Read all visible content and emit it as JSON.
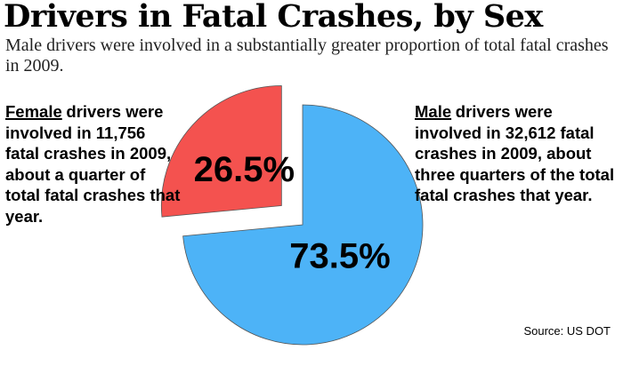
{
  "chart_data": {
    "type": "pie",
    "title": "Drivers in Fatal Crashes, by Sex",
    "subtitle": "Male drivers were involved in a substantially greater proportion of total fatal crashes in 2009.",
    "values": [
      26.5,
      73.5
    ],
    "value_labels": [
      "26.5%",
      "73.5%"
    ],
    "colors": [
      "#f4524f",
      "#4db3f7"
    ],
    "explode": [
      true,
      false
    ],
    "annotations": [
      {
        "emphasis": "Female",
        "text": "drivers were involved in 11,756 fatal crashes in 2009, about a quarter of total fatal crashes that year."
      },
      {
        "emphasis": "Male",
        "text": "drivers were involved in 32,612 fatal crashes in 2009, about three quarters of the total fatal crashes that year."
      }
    ],
    "source": "Source: US DOT"
  }
}
